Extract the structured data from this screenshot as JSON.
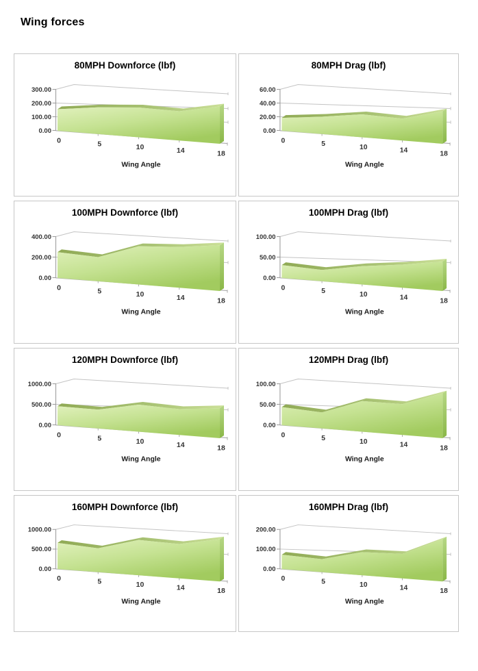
{
  "page": {
    "title": "Wing forces"
  },
  "colors": {
    "area_face_light": "#e1f1bd",
    "area_face_mid": "#c5e292",
    "area_face_dark": "#a2cb5f",
    "area_ridge_dark": "#90aa55",
    "area_ridge_light": "#cbe098",
    "area_cap_top": "#b6d785",
    "area_cap_bottom": "#8ab747",
    "gridline": "#c3c3c3",
    "axis_line": "#9e9e9e",
    "floor_line": "#ababab",
    "card_border": "#c6c6c6",
    "label_text": "#333333"
  },
  "chart_data": [
    {
      "type": "area",
      "title": "80MPH Downforce (lbf)",
      "xlabel": "Wing Angle",
      "categories": [
        0,
        5,
        10,
        14,
        18
      ],
      "xticks": [
        "0",
        "5",
        "10",
        "14",
        "18"
      ],
      "values": [
        150,
        170,
        175,
        160,
        190
      ],
      "yticks": [
        "300.00",
        "200.00",
        "100.00",
        "0.00"
      ],
      "ylim": [
        0,
        300
      ],
      "grid": true,
      "legend": "none"
    },
    {
      "type": "area",
      "title": "80MPH Drag (lbf)",
      "xlabel": "Wing Angle",
      "categories": [
        0,
        5,
        10,
        14,
        18
      ],
      "xticks": [
        "0",
        "5",
        "10",
        "14",
        "18"
      ],
      "values": [
        18,
        22,
        27,
        24,
        33
      ],
      "yticks": [
        "60.00",
        "40.00",
        "20.00",
        "0.00"
      ],
      "ylim": [
        0,
        60
      ],
      "grid": true,
      "legend": "none"
    },
    {
      "type": "area",
      "title": "100MPH Downforce (lbf)",
      "xlabel": "Wing Angle",
      "categories": [
        0,
        5,
        10,
        14,
        18
      ],
      "xticks": [
        "0",
        "5",
        "10",
        "14",
        "18"
      ],
      "values": [
        240,
        205,
        300,
        297,
        310
      ],
      "yticks": [
        "400.00",
        "200.00",
        "0.00"
      ],
      "ylim": [
        0,
        400
      ],
      "grid": true,
      "legend": "none"
    },
    {
      "type": "area",
      "title": "100MPH Drag (lbf)",
      "xlabel": "Wing Angle",
      "categories": [
        0,
        5,
        10,
        14,
        18
      ],
      "xticks": [
        "0",
        "5",
        "10",
        "14",
        "18"
      ],
      "values": [
        30,
        24,
        36,
        42,
        50
      ],
      "yticks": [
        "100.00",
        "50.00",
        "0.00"
      ],
      "ylim": [
        0,
        100
      ],
      "grid": true,
      "legend": "none"
    },
    {
      "type": "area",
      "title": "120MPH Downforce (lbf)",
      "xlabel": "Wing Angle",
      "categories": [
        0,
        5,
        10,
        14,
        18
      ],
      "xticks": [
        "0",
        "5",
        "10",
        "14",
        "18"
      ],
      "values": [
        440,
        400,
        530,
        470,
        510
      ],
      "yticks": [
        "1000.00",
        "500.00",
        "0.00"
      ],
      "ylim": [
        0,
        1000
      ],
      "grid": true,
      "legend": "none"
    },
    {
      "type": "area",
      "title": "120MPH Drag (lbf)",
      "xlabel": "Wing Angle",
      "categories": [
        0,
        5,
        10,
        14,
        18
      ],
      "xticks": [
        "0",
        "5",
        "10",
        "14",
        "18"
      ],
      "values": [
        42,
        34,
        60,
        56,
        76
      ],
      "yticks": [
        "100.00",
        "50.00",
        "0.00"
      ],
      "ylim": [
        0,
        100
      ],
      "grid": true,
      "legend": "none"
    },
    {
      "type": "area",
      "title": "160MPH Downforce (lbf)",
      "xlabel": "Wing Angle",
      "categories": [
        0,
        5,
        10,
        14,
        18
      ],
      "xticks": [
        "0",
        "5",
        "10",
        "14",
        "18"
      ],
      "values": [
        635,
        530,
        725,
        655,
        750
      ],
      "yticks": [
        "1000.00",
        "500.00",
        "0.00"
      ],
      "ylim": [
        0,
        1000
      ],
      "grid": true,
      "legend": "none"
    },
    {
      "type": "area",
      "title": "160MPH Drag (lbf)",
      "xlabel": "Wing Angle",
      "categories": [
        0,
        5,
        10,
        14,
        18
      ],
      "xticks": [
        "0",
        "5",
        "10",
        "14",
        "18"
      ],
      "values": [
        70,
        58,
        95,
        93,
        150
      ],
      "yticks": [
        "200.00",
        "100.00",
        "0.00"
      ],
      "ylim": [
        0,
        200
      ],
      "grid": true,
      "legend": "none"
    }
  ]
}
